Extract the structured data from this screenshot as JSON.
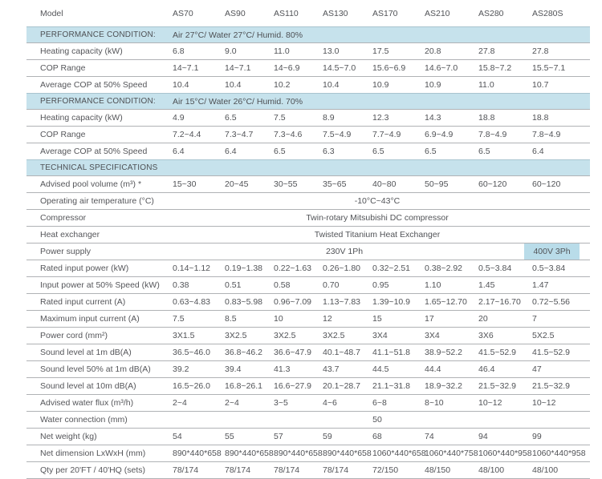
{
  "colors": {
    "header_text": "#3f9fc6",
    "section_bg": "#c6e2ec",
    "highlight_bg": "#b9dce9",
    "row_line": "#b0b2b5",
    "label_text": "#55565a",
    "value_text": "#515357"
  },
  "table": {
    "header": {
      "label": "Model",
      "columns": [
        "AS70",
        "AS90",
        "AS110",
        "AS130",
        "AS170",
        "AS210",
        "AS280",
        "AS280S"
      ]
    },
    "rows": [
      {
        "type": "section",
        "label": "PERFORMANCE CONDITION:",
        "value": "Air 27°C/ Water 27°C/ Humid. 80%"
      },
      {
        "type": "data",
        "label": "Heating capacity (kW)",
        "values": [
          "6.8",
          "9.0",
          "11.0",
          "13.0",
          "17.5",
          "20.8",
          "27.8",
          "27.8"
        ]
      },
      {
        "type": "data",
        "label": "COP Range",
        "values": [
          "14~7.1",
          "14~7.1",
          "14~6.9",
          "14.5~7.0",
          "15.6~6.9",
          "14.6~7.0",
          "15.8~7.2",
          "15.5~7.1"
        ]
      },
      {
        "type": "data",
        "label": "Average COP at 50% Speed",
        "values": [
          "10.4",
          "10.4",
          "10.2",
          "10.4",
          "10.9",
          "10.9",
          "11.0",
          "10.7"
        ]
      },
      {
        "type": "section",
        "label": "PERFORMANCE CONDITION:",
        "value": "Air 15°C/ Water 26°C/ Humid. 70%"
      },
      {
        "type": "data",
        "label": "Heating capacity (kW)",
        "values": [
          "4.9",
          "6.5",
          "7.5",
          "8.9",
          "12.3",
          "14.3",
          "18.8",
          "18.8"
        ]
      },
      {
        "type": "data",
        "label": "COP Range",
        "values": [
          "7.2~4.4",
          "7.3~4.7",
          "7.3~4.6",
          "7.5~4.9",
          "7.7~4.9",
          "6.9~4.9",
          "7.8~4.9",
          "7.8~4.9"
        ]
      },
      {
        "type": "data",
        "label": "Average COP at 50% Speed",
        "values": [
          "6.4",
          "6.4",
          "6.5",
          "6.3",
          "6.5",
          "6.5",
          "6.5",
          "6.4"
        ]
      },
      {
        "type": "section",
        "label": "TECHNICAL SPECIFICATIONS",
        "value": ""
      },
      {
        "type": "data",
        "label": "Advised pool volume (m³) *",
        "values": [
          "15~30",
          "20~45",
          "30~55",
          "35~65",
          "40~80",
          "50~95",
          "60~120",
          "60~120"
        ]
      },
      {
        "type": "span",
        "label": "Operating air temperature (°C)",
        "value": "-10°C~43°C"
      },
      {
        "type": "span",
        "label": "Compressor",
        "value": "Twin-rotary Mitsubishi DC compressor"
      },
      {
        "type": "span",
        "label": "Heat exchanger",
        "value": "Twisted Titanium Heat Exchanger"
      },
      {
        "type": "power",
        "label": "Power supply",
        "value": "230V 1Ph",
        "highlight": "400V 3Ph"
      },
      {
        "type": "data",
        "label": "Rated input power (kW)",
        "values": [
          "0.14~1.12",
          "0.19~1.38",
          "0.22~1.63",
          "0.26~1.80",
          "0.32~2.51",
          "0.38~2.92",
          "0.5~3.84",
          "0.5~3.84"
        ]
      },
      {
        "type": "data",
        "label": "Input power at 50% Speed (kW)",
        "values": [
          "0.38",
          "0.51",
          "0.58",
          "0.70",
          "0.95",
          "1.10",
          "1.45",
          "1.47"
        ]
      },
      {
        "type": "data",
        "label": "Rated input current (A)",
        "values": [
          "0.63~4.83",
          "0.83~5.98",
          "0.96~7.09",
          "1.13~7.83",
          "1.39~10.9",
          "1.65~12.70",
          "2.17~16.70",
          "0.72~5.56"
        ]
      },
      {
        "type": "data",
        "label": "Maximum input current (A)",
        "values": [
          "7.5",
          "8.5",
          "10",
          "12",
          "15",
          "17",
          "20",
          "7"
        ]
      },
      {
        "type": "data",
        "label": "Power cord (mm²)",
        "values": [
          "3X1.5",
          "3X2.5",
          "3X2.5",
          "3X2.5",
          "3X4",
          "3X4",
          "3X6",
          "5X2.5"
        ]
      },
      {
        "type": "data",
        "label": "Sound level  at 1m dB(A)",
        "values": [
          "36.5~46.0",
          "36.8~46.2",
          "36.6~47.9",
          "40.1~48.7",
          "41.1~51.8",
          "38.9~52.2",
          "41.5~52.9",
          "41.5~52.9"
        ]
      },
      {
        "type": "data",
        "label": "Sound level  50% at 1m dB(A)",
        "values": [
          "39.2",
          "39.4",
          "41.3",
          "43.7",
          "44.5",
          "44.4",
          "46.4",
          "47"
        ]
      },
      {
        "type": "data",
        "label": "Sound level  at 10m dB(A)",
        "values": [
          "16.5~26.0",
          "16.8~26.1",
          "16.6~27.9",
          "20.1~28.7",
          "21.1~31.8",
          "18.9~32.2",
          "21.5~32.9",
          "21.5~32.9"
        ]
      },
      {
        "type": "data",
        "label": "Advised water flux (m³/h)",
        "values": [
          "2~4",
          "2~4",
          "3~5",
          "4~6",
          "6~8",
          "8~10",
          "10~12",
          "10~12"
        ]
      },
      {
        "type": "span",
        "label": "Water connection (mm)",
        "value": "50"
      },
      {
        "type": "data",
        "label": "Net weight (kg)",
        "values": [
          "54",
          "55",
          "57",
          "59",
          "68",
          "74",
          "94",
          "99"
        ]
      },
      {
        "type": "data",
        "label": "Net dimension LxWxH (mm)",
        "values": [
          "890*440*658",
          "890*440*658",
          "890*440*658",
          "890*440*658",
          "1060*440*658",
          "1060*440*758",
          "1060*440*958",
          "1060*440*958"
        ]
      },
      {
        "type": "data",
        "label": "Qty per 20'FT / 40'HQ (sets)",
        "values": [
          "78/174",
          "78/174",
          "78/174",
          "78/174",
          "72/150",
          "48/150",
          "48/100",
          "48/100"
        ]
      }
    ]
  }
}
